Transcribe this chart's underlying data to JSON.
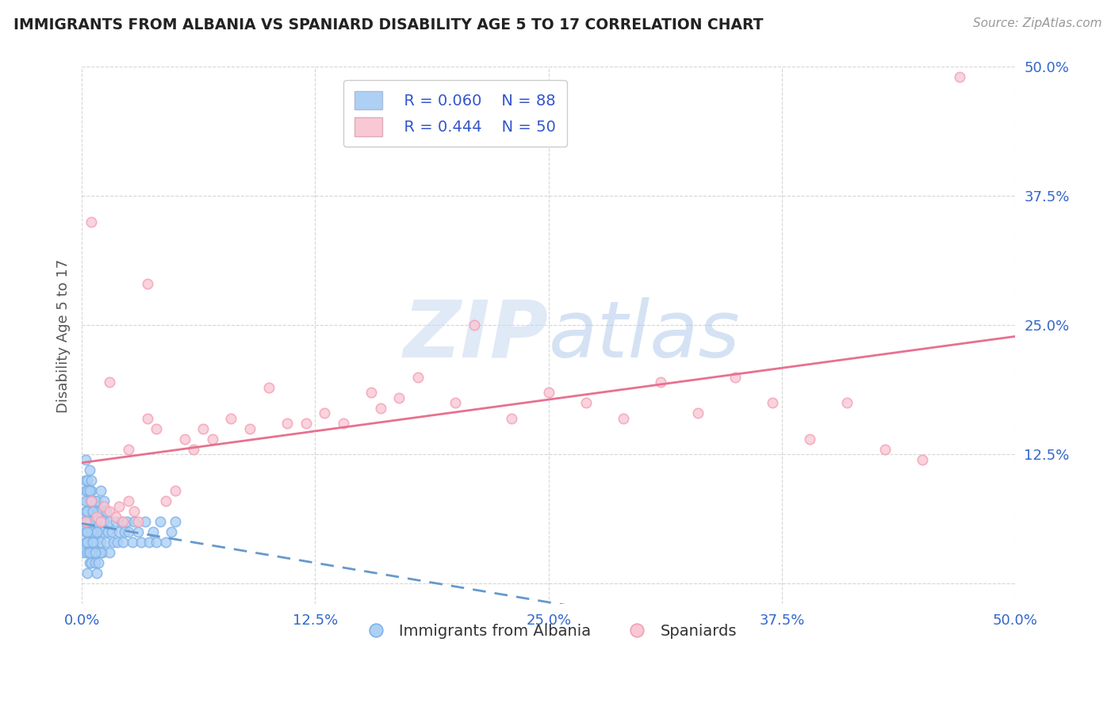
{
  "title": "IMMIGRANTS FROM ALBANIA VS SPANIARD DISABILITY AGE 5 TO 17 CORRELATION CHART",
  "source_text": "Source: ZipAtlas.com",
  "ylabel": "Disability Age 5 to 17",
  "legend_xlabel": "Immigrants from Albania",
  "legend_ylabel": "Spaniards",
  "xlim": [
    0.0,
    0.5
  ],
  "ylim": [
    -0.02,
    0.5
  ],
  "xticks": [
    0.0,
    0.125,
    0.25,
    0.375,
    0.5
  ],
  "yticks": [
    0.0,
    0.125,
    0.25,
    0.375,
    0.5
  ],
  "xticklabels": [
    "0.0%",
    "12.5%",
    "25.0%",
    "37.5%",
    "50.0%"
  ],
  "yticklabels": [
    "",
    "12.5%",
    "25.0%",
    "37.5%",
    "50.0%"
  ],
  "blue_R": 0.06,
  "blue_N": 88,
  "pink_R": 0.444,
  "pink_N": 50,
  "blue_color": "#7EB3E8",
  "blue_fill": "#AED0F5",
  "pink_color": "#F4A0B5",
  "pink_fill": "#F8C8D5",
  "trend_blue_color": "#6699CC",
  "trend_pink_color": "#E87090",
  "watermark_zip_color": "#C8D8F0",
  "watermark_atlas_color": "#A0C0E8",
  "title_color": "#222222",
  "axis_label_color": "#555555",
  "tick_color": "#3366CC",
  "grid_color": "#CCCCCC",
  "background_color": "#FFFFFF",
  "figsize": [
    14.06,
    8.92
  ],
  "dpi": 100,
  "blue_x": [
    0.001,
    0.001,
    0.002,
    0.002,
    0.002,
    0.003,
    0.003,
    0.003,
    0.004,
    0.004,
    0.004,
    0.005,
    0.005,
    0.005,
    0.006,
    0.006,
    0.006,
    0.007,
    0.007,
    0.007,
    0.008,
    0.008,
    0.008,
    0.009,
    0.009,
    0.009,
    0.01,
    0.01,
    0.01,
    0.011,
    0.011,
    0.012,
    0.012,
    0.013,
    0.013,
    0.014,
    0.015,
    0.015,
    0.016,
    0.017,
    0.018,
    0.019,
    0.02,
    0.021,
    0.022,
    0.023,
    0.024,
    0.025,
    0.027,
    0.028,
    0.03,
    0.032,
    0.034,
    0.036,
    0.038,
    0.04,
    0.042,
    0.045,
    0.048,
    0.05,
    0.003,
    0.004,
    0.005,
    0.006,
    0.007,
    0.008,
    0.009,
    0.01,
    0.002,
    0.003,
    0.004,
    0.005,
    0.006,
    0.007,
    0.008,
    0.002,
    0.003,
    0.004,
    0.002,
    0.003,
    0.005,
    0.006,
    0.003,
    0.004,
    0.003,
    0.002,
    0.004,
    0.005
  ],
  "blue_y": [
    0.03,
    0.06,
    0.04,
    0.07,
    0.09,
    0.03,
    0.06,
    0.08,
    0.05,
    0.08,
    0.03,
    0.04,
    0.07,
    0.09,
    0.05,
    0.07,
    0.03,
    0.06,
    0.08,
    0.04,
    0.03,
    0.06,
    0.08,
    0.05,
    0.07,
    0.03,
    0.04,
    0.07,
    0.09,
    0.05,
    0.03,
    0.06,
    0.08,
    0.04,
    0.07,
    0.05,
    0.03,
    0.06,
    0.05,
    0.04,
    0.06,
    0.04,
    0.05,
    0.06,
    0.04,
    0.05,
    0.06,
    0.05,
    0.04,
    0.06,
    0.05,
    0.04,
    0.06,
    0.04,
    0.05,
    0.04,
    0.06,
    0.04,
    0.05,
    0.06,
    0.01,
    0.02,
    0.02,
    0.03,
    0.02,
    0.01,
    0.02,
    0.03,
    0.05,
    0.04,
    0.03,
    0.05,
    0.04,
    0.03,
    0.05,
    0.08,
    0.07,
    0.06,
    0.1,
    0.09,
    0.08,
    0.07,
    0.1,
    0.09,
    0.05,
    0.12,
    0.11,
    0.1
  ],
  "pink_x": [
    0.002,
    0.005,
    0.008,
    0.01,
    0.012,
    0.015,
    0.018,
    0.02,
    0.022,
    0.025,
    0.028,
    0.03,
    0.035,
    0.04,
    0.045,
    0.05,
    0.055,
    0.06,
    0.065,
    0.07,
    0.08,
    0.09,
    0.1,
    0.11,
    0.12,
    0.13,
    0.14,
    0.155,
    0.16,
    0.17,
    0.18,
    0.2,
    0.21,
    0.23,
    0.25,
    0.27,
    0.29,
    0.31,
    0.33,
    0.35,
    0.37,
    0.39,
    0.41,
    0.43,
    0.45,
    0.005,
    0.015,
    0.025,
    0.035,
    0.47
  ],
  "pink_y": [
    0.06,
    0.08,
    0.065,
    0.06,
    0.075,
    0.07,
    0.065,
    0.075,
    0.06,
    0.08,
    0.07,
    0.06,
    0.16,
    0.15,
    0.08,
    0.09,
    0.14,
    0.13,
    0.15,
    0.14,
    0.16,
    0.15,
    0.19,
    0.155,
    0.155,
    0.165,
    0.155,
    0.185,
    0.17,
    0.18,
    0.2,
    0.175,
    0.25,
    0.16,
    0.185,
    0.175,
    0.16,
    0.195,
    0.165,
    0.2,
    0.175,
    0.14,
    0.175,
    0.13,
    0.12,
    0.35,
    0.195,
    0.13,
    0.29,
    0.49
  ]
}
